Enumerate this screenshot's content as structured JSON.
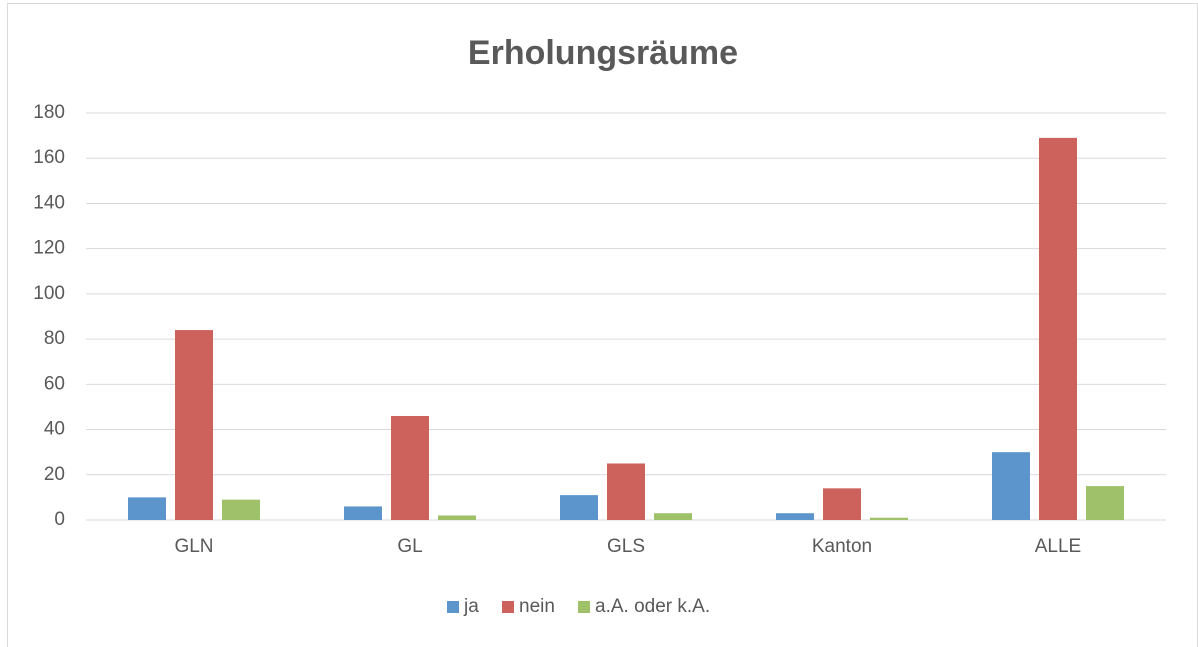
{
  "chart_data": {
    "type": "bar",
    "title": "Erholungsräume",
    "categories": [
      "GLN",
      "GL",
      "GLS",
      "Kanton",
      "ALLE"
    ],
    "series": [
      {
        "name": "ja",
        "color": "#5b95cc",
        "values": [
          10,
          6,
          11,
          3,
          30
        ]
      },
      {
        "name": "nein",
        "color": "#cd625c",
        "values": [
          84,
          46,
          25,
          14,
          169
        ]
      },
      {
        "name": "a.A. oder k.A.",
        "color": "#9fc16a",
        "values": [
          9,
          2,
          3,
          1,
          15
        ]
      }
    ],
    "ylim": [
      0,
      180
    ],
    "yticks": [
      0,
      20,
      40,
      60,
      80,
      100,
      120,
      140,
      160,
      180
    ],
    "grid": true,
    "legend": "bottom"
  }
}
